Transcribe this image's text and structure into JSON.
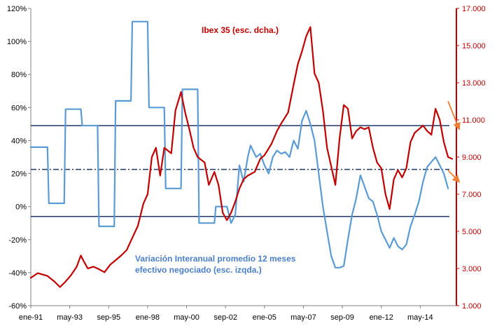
{
  "chart_data": {
    "type": "line",
    "title": "",
    "x_tick_labels": [
      "ene-91",
      "may-93",
      "sep-95",
      "ene-98",
      "may-00",
      "sep-02",
      "ene-05",
      "may-07",
      "sep-09",
      "ene-12",
      "may-14"
    ],
    "x_range": [
      "1991-01",
      "2016-07"
    ],
    "y_left": {
      "label": "",
      "min": -60,
      "max": 120,
      "step": 20,
      "tick_labels": [
        "-60%",
        "-40%",
        "-20%",
        "0%",
        "20%",
        "40%",
        "60%",
        "80%",
        "100%",
        "120%"
      ]
    },
    "y_right": {
      "label": "",
      "min": 1000,
      "max": 17000,
      "step": 2000,
      "tick_labels": [
        "1.000",
        "3.000",
        "5.000",
        "7.000",
        "9.000",
        "11.000",
        "13.000",
        "15.000",
        "17.000"
      ]
    },
    "grid": false,
    "annotations": {
      "ibex": "Ibex 35 (esc. dcha.)",
      "volume_line1": "Variación Interanual promedio 12 meses",
      "volume_line2": "efectivo negociado (esc. izqda.)"
    },
    "reference_lines_left_axis": [
      {
        "value": 49,
        "style": "solid",
        "color": "#1f3864"
      },
      {
        "value": 22.5,
        "style": "dashdot",
        "color": "#1f3864"
      },
      {
        "value": -6,
        "style": "solid",
        "color": "#1f3864"
      }
    ],
    "series": [
      {
        "axis": "left",
        "color": "#5b9bd5",
        "points": [
          [
            "1991-01",
            36
          ],
          [
            "1992-01",
            36
          ],
          [
            "1992-02",
            2
          ],
          [
            "1993-01",
            2
          ],
          [
            "1993-02",
            59
          ],
          [
            "1994-01",
            59
          ],
          [
            "1994-02",
            49
          ],
          [
            "1995-01",
            49
          ],
          [
            "1995-02",
            -12
          ],
          [
            "1996-01",
            -12
          ],
          [
            "1996-02",
            64
          ],
          [
            "1997-01",
            64
          ],
          [
            "1997-02",
            112
          ],
          [
            "1998-01",
            112
          ],
          [
            "1998-02",
            60
          ],
          [
            "1999-01",
            60
          ],
          [
            "1999-02",
            11
          ],
          [
            "2000-01",
            11
          ],
          [
            "2000-02",
            71
          ],
          [
            "2001-01",
            71
          ],
          [
            "2001-02",
            -10
          ],
          [
            "2002-01",
            -10
          ],
          [
            "2002-02",
            0
          ],
          [
            "2002-10",
            0
          ],
          [
            "2003-01",
            -10
          ],
          [
            "2003-04",
            -5
          ],
          [
            "2003-07",
            25
          ],
          [
            "2003-10",
            15
          ],
          [
            "2004-01",
            30
          ],
          [
            "2004-03",
            37
          ],
          [
            "2004-07",
            30
          ],
          [
            "2004-10",
            32
          ],
          [
            "2005-01",
            25
          ],
          [
            "2005-04",
            20
          ],
          [
            "2005-07",
            30
          ],
          [
            "2005-10",
            34
          ],
          [
            "2006-01",
            32
          ],
          [
            "2006-04",
            33
          ],
          [
            "2006-07",
            30
          ],
          [
            "2006-10",
            40
          ],
          [
            "2007-01",
            35
          ],
          [
            "2007-04",
            52
          ],
          [
            "2007-07",
            58
          ],
          [
            "2007-10",
            50
          ],
          [
            "2008-01",
            40
          ],
          [
            "2008-04",
            20
          ],
          [
            "2008-07",
            0
          ],
          [
            "2008-10",
            -15
          ],
          [
            "2009-01",
            -30
          ],
          [
            "2009-04",
            -37
          ],
          [
            "2009-07",
            -37
          ],
          [
            "2009-10",
            -36
          ],
          [
            "2010-01",
            -20
          ],
          [
            "2010-04",
            -5
          ],
          [
            "2010-07",
            5
          ],
          [
            "2010-10",
            19
          ],
          [
            "2011-01",
            12
          ],
          [
            "2011-04",
            5
          ],
          [
            "2011-07",
            3
          ],
          [
            "2011-10",
            -5
          ],
          [
            "2012-01",
            -15
          ],
          [
            "2012-04",
            -20
          ],
          [
            "2012-07",
            -25
          ],
          [
            "2012-10",
            -19
          ],
          [
            "2013-01",
            -24
          ],
          [
            "2013-04",
            -26
          ],
          [
            "2013-07",
            -23
          ],
          [
            "2013-10",
            -12
          ],
          [
            "2014-01",
            -5
          ],
          [
            "2014-04",
            3
          ],
          [
            "2014-07",
            15
          ],
          [
            "2014-10",
            24
          ],
          [
            "2015-01",
            27
          ],
          [
            "2015-04",
            30
          ],
          [
            "2015-07",
            25
          ],
          [
            "2015-10",
            20
          ],
          [
            "2016-01",
            11
          ]
        ]
      },
      {
        "axis": "right",
        "color": "#c00000",
        "points": [
          [
            "1991-01",
            2500
          ],
          [
            "1991-06",
            2750
          ],
          [
            "1992-01",
            2600
          ],
          [
            "1992-06",
            2300
          ],
          [
            "1992-10",
            2000
          ],
          [
            "1993-02",
            2300
          ],
          [
            "1993-06",
            2650
          ],
          [
            "1993-10",
            3100
          ],
          [
            "1994-01",
            3700
          ],
          [
            "1994-03",
            3400
          ],
          [
            "1994-06",
            3000
          ],
          [
            "1994-10",
            3100
          ],
          [
            "1995-01",
            3000
          ],
          [
            "1995-06",
            2800
          ],
          [
            "1995-10",
            3200
          ],
          [
            "1996-02",
            3450
          ],
          [
            "1996-06",
            3700
          ],
          [
            "1996-10",
            4000
          ],
          [
            "1997-01",
            4500
          ],
          [
            "1997-06",
            5300
          ],
          [
            "1997-10",
            6500
          ],
          [
            "1998-01",
            7000
          ],
          [
            "1998-04",
            9000
          ],
          [
            "1998-07",
            9500
          ],
          [
            "1998-10",
            8000
          ],
          [
            "1999-01",
            9500
          ],
          [
            "1999-06",
            9200
          ],
          [
            "1999-09",
            11500
          ],
          [
            "2000-01",
            12500
          ],
          [
            "2000-04",
            11400
          ],
          [
            "2000-07",
            10500
          ],
          [
            "2000-10",
            9500
          ],
          [
            "2001-01",
            9000
          ],
          [
            "2001-06",
            8700
          ],
          [
            "2001-09",
            7500
          ],
          [
            "2002-01",
            8200
          ],
          [
            "2002-04",
            7500
          ],
          [
            "2002-07",
            6000
          ],
          [
            "2002-10",
            5600
          ],
          [
            "2003-01",
            6000
          ],
          [
            "2003-04",
            6600
          ],
          [
            "2003-07",
            7300
          ],
          [
            "2003-10",
            7800
          ],
          [
            "2004-01",
            8000
          ],
          [
            "2004-06",
            8200
          ],
          [
            "2004-10",
            8900
          ],
          [
            "2005-01",
            9100
          ],
          [
            "2005-06",
            9700
          ],
          [
            "2005-10",
            10400
          ],
          [
            "2006-01",
            10800
          ],
          [
            "2006-06",
            11400
          ],
          [
            "2006-10",
            12900
          ],
          [
            "2007-01",
            14000
          ],
          [
            "2007-04",
            14700
          ],
          [
            "2007-07",
            15500
          ],
          [
            "2007-10",
            16000
          ],
          [
            "2008-01",
            13500
          ],
          [
            "2008-04",
            13000
          ],
          [
            "2008-07",
            11500
          ],
          [
            "2008-10",
            9500
          ],
          [
            "2009-01",
            8500
          ],
          [
            "2009-04",
            7500
          ],
          [
            "2009-07",
            10000
          ],
          [
            "2009-10",
            11800
          ],
          [
            "2010-01",
            11600
          ],
          [
            "2010-04",
            10000
          ],
          [
            "2010-07",
            10400
          ],
          [
            "2010-10",
            10600
          ],
          [
            "2011-01",
            10500
          ],
          [
            "2011-04",
            10600
          ],
          [
            "2011-07",
            9500
          ],
          [
            "2011-10",
            8700
          ],
          [
            "2012-01",
            8400
          ],
          [
            "2012-04",
            7000
          ],
          [
            "2012-07",
            6200
          ],
          [
            "2012-10",
            7800
          ],
          [
            "2013-01",
            8300
          ],
          [
            "2013-04",
            7900
          ],
          [
            "2013-07",
            8400
          ],
          [
            "2013-10",
            9800
          ],
          [
            "2014-01",
            10300
          ],
          [
            "2014-04",
            10500
          ],
          [
            "2014-07",
            10700
          ],
          [
            "2014-10",
            10400
          ],
          [
            "2015-01",
            10200
          ],
          [
            "2015-04",
            11600
          ],
          [
            "2015-07",
            11000
          ],
          [
            "2015-10",
            9800
          ],
          [
            "2016-01",
            9000
          ],
          [
            "2016-04",
            8900
          ]
        ]
      }
    ],
    "trend_arrows": [
      {
        "axis": "right",
        "from": [
          "2016-01",
          12000
        ],
        "to": [
          "2016-09",
          10500
        ],
        "color": "#ed7d31"
      },
      {
        "axis": "left",
        "from": [
          "2016-01",
          22
        ],
        "to": [
          "2016-09",
          15
        ],
        "color": "#ed7d31"
      }
    ]
  }
}
